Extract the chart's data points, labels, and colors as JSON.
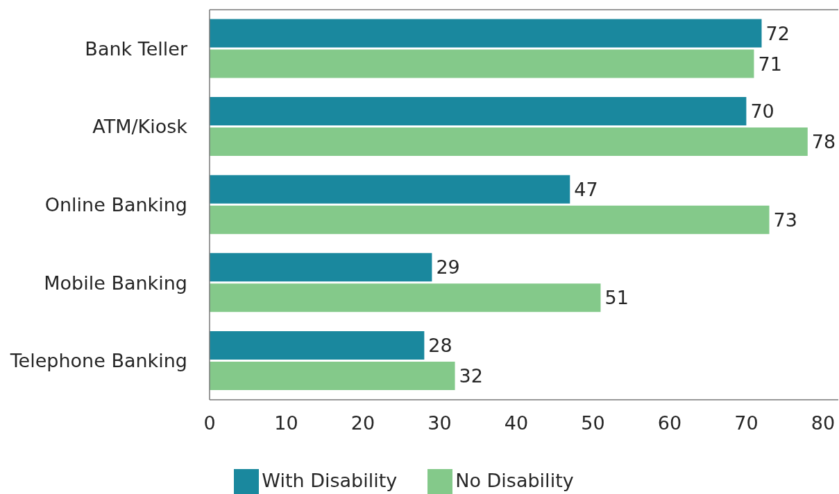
{
  "chart_data": {
    "type": "bar",
    "orientation": "horizontal",
    "categories": [
      "Bank Teller",
      "ATM/Kiosk",
      "Online Banking",
      "Mobile Banking",
      "Telephone Banking"
    ],
    "series": [
      {
        "name": "With Disability",
        "color": "#1a889e",
        "values": [
          72,
          70,
          47,
          29,
          28
        ]
      },
      {
        "name": "No Disability",
        "color": "#84c98a",
        "values": [
          71,
          78,
          73,
          51,
          32
        ]
      }
    ],
    "xlim": [
      0,
      82
    ],
    "xticks": [
      0,
      10,
      20,
      30,
      40,
      50,
      60,
      70,
      80
    ],
    "data_labels": true,
    "legend": "bottom"
  }
}
